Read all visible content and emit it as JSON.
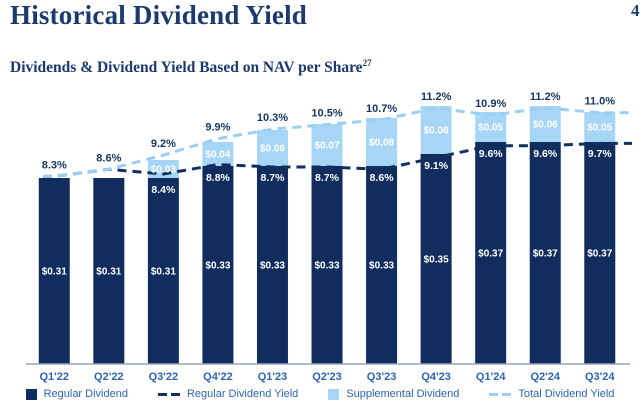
{
  "page": {
    "title": "Historical Dividend Yield",
    "page_number_partial": "4",
    "subtitle": "Dividends & Dividend Yield Based on NAV per Share",
    "subtitle_superscript": "27"
  },
  "chart_data": {
    "type": "bar",
    "stacked": true,
    "grid": false,
    "legend_position": "bottom",
    "title": "Dividends & Dividend Yield Based on NAV per Share",
    "xlabel": "",
    "ylabel": "",
    "categories": [
      "Q1'22",
      "Q2'22",
      "Q3'22",
      "Q4'22",
      "Q1'23",
      "Q2'23",
      "Q3'23",
      "Q4'23",
      "Q1'24",
      "Q2'24",
      "Q3'24"
    ],
    "series": [
      {
        "name": "Regular Dividend",
        "color": "#102D5E",
        "values": [
          0.31,
          0.31,
          0.31,
          0.33,
          0.33,
          0.33,
          0.33,
          0.35,
          0.37,
          0.37,
          0.37
        ],
        "labels": [
          "$0.31",
          "$0.31",
          "$0.31",
          "$0.33",
          "$0.33",
          "$0.33",
          "$0.33",
          "$0.35",
          "$0.37",
          "$0.37",
          "$0.37"
        ]
      },
      {
        "name": "Supplemental Dividend",
        "color": "#A7D5F5",
        "values": [
          0,
          0,
          0.03,
          0.04,
          0.06,
          0.07,
          0.08,
          0.08,
          0.05,
          0.06,
          0.05
        ],
        "labels": [
          "",
          "",
          "$0.03",
          "$0.04",
          "$0.06",
          "$0.07",
          "$0.08",
          "$0.08",
          "$0.05",
          "$0.06",
          "$0.05"
        ]
      }
    ],
    "lines": [
      {
        "name": "Regular Dividend Yield",
        "color": "#12305F",
        "values": [
          8.3,
          8.6,
          8.4,
          8.8,
          8.7,
          8.7,
          8.6,
          9.1,
          9.6,
          9.6,
          9.7
        ],
        "labels": [
          "",
          "",
          "8.4%",
          "8.8%",
          "8.7%",
          "8.7%",
          "8.6%",
          "9.1%",
          "9.6%",
          "9.6%",
          "9.7%"
        ]
      },
      {
        "name": "Total Dividend Yield",
        "color": "#9CCEF2",
        "values": [
          8.3,
          8.6,
          9.2,
          9.9,
          10.3,
          10.5,
          10.7,
          11.2,
          10.9,
          11.2,
          11.0
        ],
        "labels": [
          "8.3%",
          "8.6%",
          "9.2%",
          "9.9%",
          "10.3%",
          "10.5%",
          "10.7%",
          "11.2%",
          "10.9%",
          "11.2%",
          "11.0%"
        ]
      }
    ],
    "colors": {
      "total_label": "#15345E",
      "axis_label": "#2F64AD",
      "axis_line": "#95A4B5",
      "bar_value_text": "#FFFFFF"
    }
  }
}
